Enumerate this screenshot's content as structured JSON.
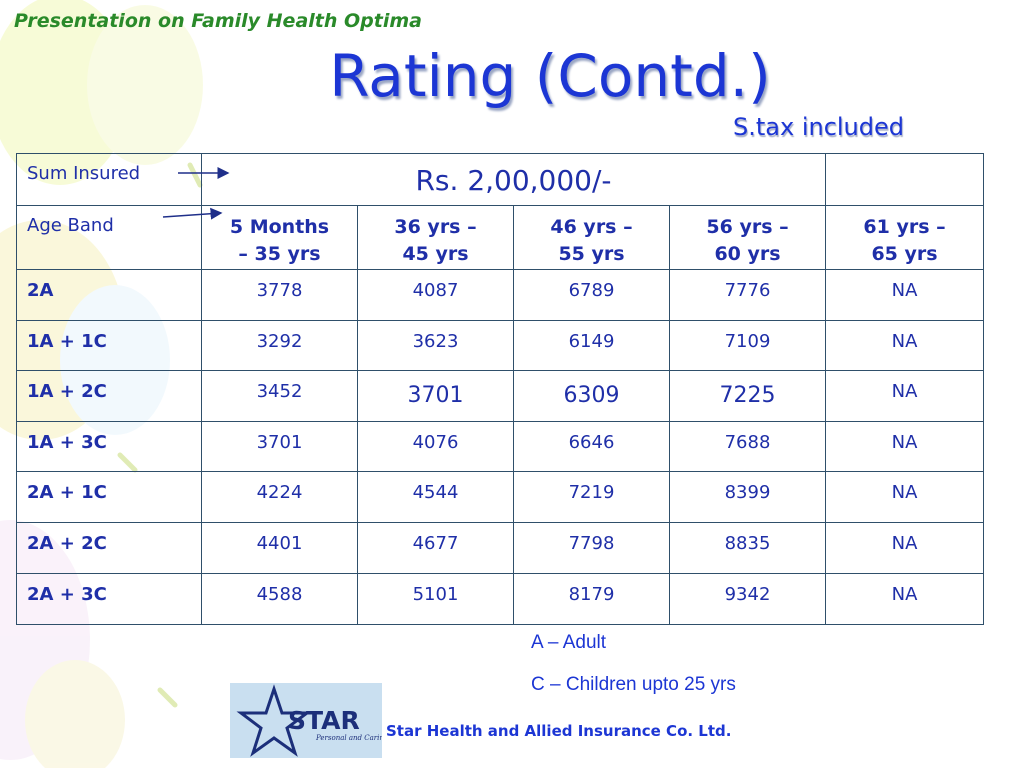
{
  "deck_title": "Presentation on Family Health Optima",
  "slide_title": "Rating (Contd.)",
  "tax_note": "S.tax included",
  "table": {
    "sum_insured_label": "Sum Insured",
    "sum_insured_value": "Rs. 2,00,000/-",
    "age_band_label": "Age Band",
    "age_bands": [
      {
        "line1": "5 Months",
        "line2": "– 35 yrs"
      },
      {
        "line1": "36 yrs –",
        "line2": "45 yrs"
      },
      {
        "line1": "46 yrs –",
        "line2": "55 yrs"
      },
      {
        "line1": "56 yrs –",
        "line2": "60 yrs"
      },
      {
        "line1": "61 yrs –",
        "line2": "65 yrs"
      }
    ],
    "rows": [
      {
        "label": "2A",
        "values": [
          "3778",
          "4087",
          "6789",
          "7776",
          "NA"
        ]
      },
      {
        "label": "1A + 1C",
        "values": [
          "3292",
          "3623",
          "6149",
          "7109",
          "NA"
        ]
      },
      {
        "label": "1A + 2C",
        "values": [
          "3452",
          "3701",
          "6309",
          "7225",
          "NA"
        ]
      },
      {
        "label": "1A + 3C",
        "values": [
          "3701",
          "4076",
          "6646",
          "7688",
          "NA"
        ]
      },
      {
        "label": "2A + 1C",
        "values": [
          "4224",
          "4544",
          "7219",
          "8399",
          "NA"
        ]
      },
      {
        "label": "2A + 2C",
        "values": [
          "4401",
          "4677",
          "7798",
          "8835",
          "NA"
        ]
      },
      {
        "label": "2A + 3C",
        "values": [
          "4588",
          "5101",
          "8179",
          "9342",
          "NA"
        ]
      }
    ]
  },
  "legend": {
    "adult": "A – Adult",
    "children": "C – Children upto 25 yrs"
  },
  "logo": {
    "name": "STAR",
    "tagline": "Personal and Caring"
  },
  "company": "Star Health and Allied Insurance Co. Ltd.",
  "colors": {
    "title_blue": "#1c36d4",
    "deck_title_green": "#2a8a2a",
    "table_text": "#1f2fa8",
    "table_border": "#2f4f6a"
  }
}
